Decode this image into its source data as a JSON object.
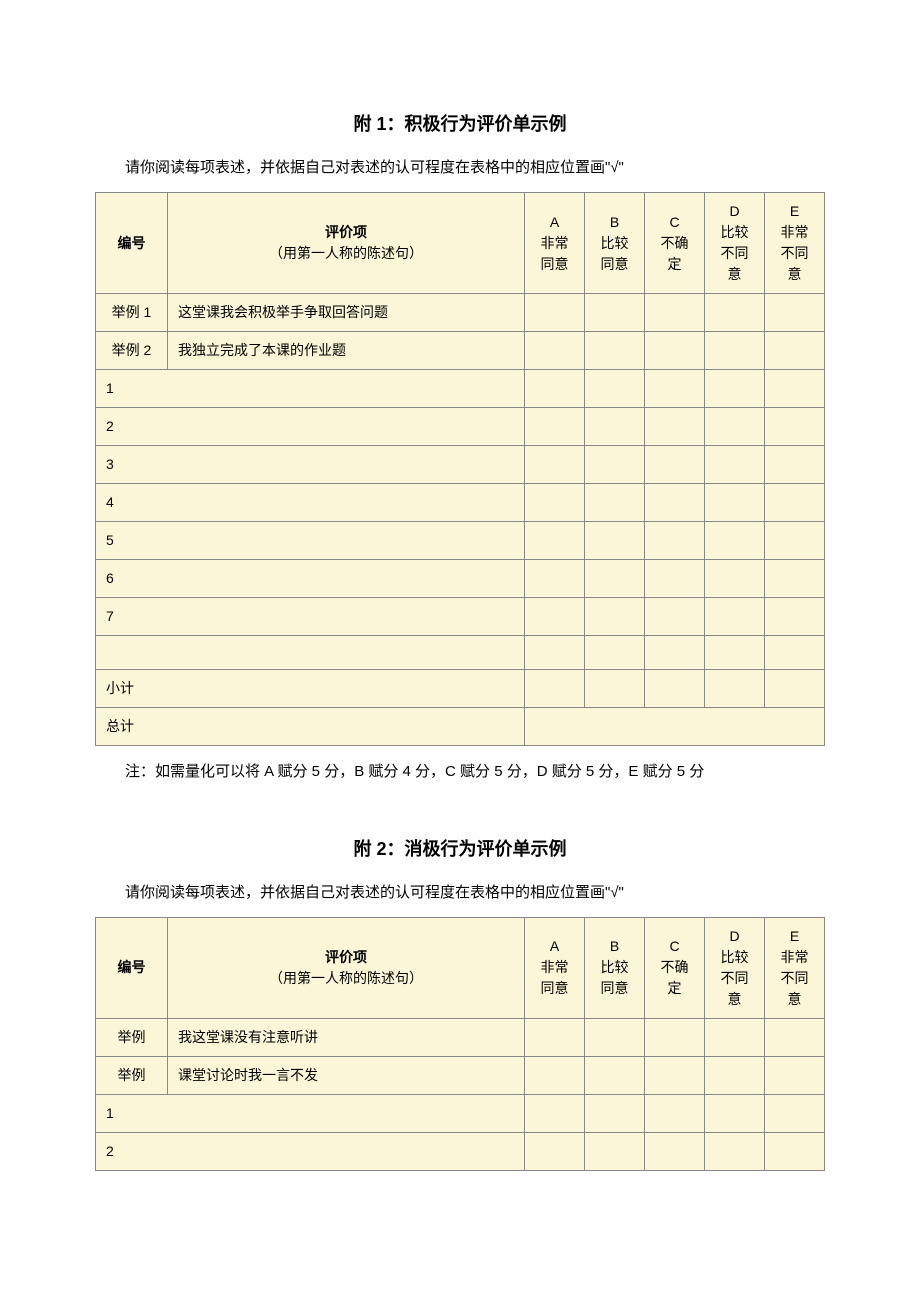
{
  "section1": {
    "title": "附 1：积极行为评价单示例",
    "instruction": "请你阅读每项表述，并依据自己对表述的认可程度在表格中的相应位置画\"√\"",
    "headers": {
      "num": "编号",
      "item_line1": "评价项",
      "item_line2": "（用第一人称的陈述句）",
      "a": "A\n非常\n同意",
      "b": "B\n比较\n同意",
      "c": "C\n不确\n定",
      "d": "D\n比较\n不同\n意",
      "e": "E\n非常\n不同\n意"
    },
    "examples": [
      {
        "num": "举例 1",
        "text": "这堂课我会积极举手争取回答问题"
      },
      {
        "num": "举例 2",
        "text": "我独立完成了本课的作业题"
      }
    ],
    "rows": [
      "1",
      "2",
      "3",
      "4",
      "5",
      "6",
      "7"
    ],
    "subtotal": "小计",
    "total": "总计",
    "note": "注：如需量化可以将 A 赋分 5 分，B 赋分 4 分，C 赋分 5 分，D 赋分 5 分，E 赋分 5 分"
  },
  "section2": {
    "title": "附 2：消极行为评价单示例",
    "instruction": "请你阅读每项表述，并依据自己对表述的认可程度在表格中的相应位置画\"√\"",
    "headers": {
      "num": "编号",
      "item_line1": "评价项",
      "item_line2": "（用第一人称的陈述句）",
      "a": "A\n非常\n同意",
      "b": "B\n比较\n同意",
      "c": "C\n不确\n定",
      "d": "D\n比较\n不同\n意",
      "e": "E\n非常\n不同\n意"
    },
    "examples": [
      {
        "num": "举例",
        "text": "我这堂课没有注意听讲"
      },
      {
        "num": "举例",
        "text": "课堂讨论时我一言不发"
      }
    ],
    "rows": [
      "1",
      "2"
    ]
  },
  "styles": {
    "table_bg": "#fbf6d7",
    "border_color": "#888888",
    "page_bg": "#ffffff",
    "text_color": "#000000",
    "title_fontsize": 18,
    "body_fontsize": 15,
    "cell_fontsize": 14
  }
}
